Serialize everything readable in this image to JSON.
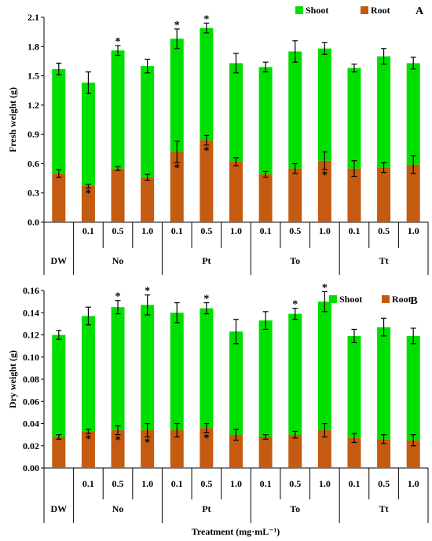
{
  "chart_data": [
    {
      "type": "bar",
      "stacked": true,
      "panel_label": "A",
      "ylabel": "Fresh weight (g)",
      "ylim": [
        0,
        2.1
      ],
      "yticks": [
        "0.0",
        "0.3",
        "0.6",
        "0.9",
        "1.2",
        "1.5",
        "1.8",
        "2.1"
      ],
      "legend_position": "top-right",
      "categories": [
        "DW",
        "0.1",
        "0.5",
        "1.0",
        "0.1",
        "0.5",
        "1.0",
        "0.1",
        "0.5",
        "1.0",
        "0.1",
        "0.5",
        "1.0"
      ],
      "groups": [
        {
          "label": "",
          "start": 0,
          "end": 0
        },
        {
          "label": "No",
          "start": 1,
          "end": 3
        },
        {
          "label": "Pt",
          "start": 4,
          "end": 6
        },
        {
          "label": "To",
          "start": 7,
          "end": 9
        },
        {
          "label": "Tt",
          "start": 10,
          "end": 12
        }
      ],
      "series": [
        {
          "name": "Root",
          "color": "#c55a11",
          "values": [
            0.5,
            0.37,
            0.55,
            0.46,
            0.72,
            0.84,
            0.62,
            0.49,
            0.55,
            0.63,
            0.55,
            0.56,
            0.59
          ],
          "errors": [
            0.04,
            0.02,
            0.02,
            0.03,
            0.11,
            0.05,
            0.04,
            0.03,
            0.05,
            0.09,
            0.08,
            0.05,
            0.09
          ],
          "sig": [
            false,
            true,
            false,
            false,
            true,
            true,
            false,
            false,
            false,
            true,
            false,
            false,
            false
          ]
        },
        {
          "name": "Shoot",
          "color": "#00e000",
          "values": [
            1.07,
            1.06,
            1.21,
            1.14,
            1.16,
            1.15,
            1.01,
            1.1,
            1.2,
            1.15,
            1.03,
            1.14,
            1.04
          ],
          "total_errors": [
            0.06,
            0.11,
            0.05,
            0.07,
            0.1,
            0.05,
            0.1,
            0.05,
            0.11,
            0.06,
            0.04,
            0.08,
            0.06
          ],
          "sig": [
            false,
            false,
            true,
            false,
            true,
            true,
            false,
            false,
            false,
            false,
            false,
            false,
            false
          ]
        }
      ]
    },
    {
      "type": "bar",
      "stacked": true,
      "panel_label": "B",
      "ylabel": "Dry weight (g)",
      "xlabel": "Treatment (mg·mL⁻¹)",
      "ylim": [
        0,
        0.16
      ],
      "yticks": [
        "0.00",
        "0.02",
        "0.04",
        "0.06",
        "0.08",
        "0.10",
        "0.12",
        "0.14",
        "0.16"
      ],
      "legend_position": "top-right",
      "categories": [
        "DW",
        "0.1",
        "0.5",
        "1.0",
        "0.1",
        "0.5",
        "1.0",
        "0.1",
        "0.5",
        "1.0",
        "0.1",
        "0.5",
        "1.0"
      ],
      "groups": [
        {
          "label": "",
          "start": 0,
          "end": 0
        },
        {
          "label": "No",
          "start": 1,
          "end": 3
        },
        {
          "label": "Pt",
          "start": 4,
          "end": 6
        },
        {
          "label": "To",
          "start": 7,
          "end": 9
        },
        {
          "label": "Tt",
          "start": 10,
          "end": 12
        }
      ],
      "series": [
        {
          "name": "Root",
          "color": "#c55a11",
          "values": [
            0.028,
            0.033,
            0.034,
            0.034,
            0.034,
            0.036,
            0.03,
            0.028,
            0.03,
            0.034,
            0.027,
            0.026,
            0.025
          ],
          "errors": [
            0.002,
            0.002,
            0.004,
            0.006,
            0.006,
            0.004,
            0.005,
            0.002,
            0.003,
            0.006,
            0.004,
            0.004,
            0.005
          ],
          "sig": [
            false,
            true,
            true,
            true,
            false,
            true,
            false,
            false,
            false,
            false,
            false,
            false,
            false
          ]
        },
        {
          "name": "Shoot",
          "color": "#00e000",
          "values": [
            0.092,
            0.104,
            0.111,
            0.113,
            0.106,
            0.108,
            0.093,
            0.105,
            0.109,
            0.116,
            0.092,
            0.101,
            0.094
          ],
          "total_errors": [
            0.004,
            0.008,
            0.006,
            0.009,
            0.009,
            0.005,
            0.011,
            0.008,
            0.005,
            0.009,
            0.006,
            0.008,
            0.007
          ],
          "sig": [
            false,
            false,
            true,
            true,
            false,
            true,
            false,
            false,
            true,
            true,
            false,
            false,
            false
          ]
        }
      ]
    }
  ]
}
